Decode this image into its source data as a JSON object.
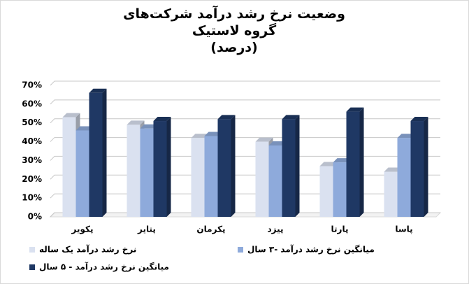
{
  "chart_data": {
    "type": "bar",
    "title": "وضعیت نرخ رشد درآمد شرکت‌های گروه لاستیک",
    "subtitle": "(درصد)",
    "categories": [
      "پکویر",
      "پتایر",
      "پکرمان",
      "پیزد",
      "پارتا",
      "پاسا"
    ],
    "series": [
      {
        "name": "نرخ رشد درآمد یک ساله",
        "color": "#dae1f0",
        "values": [
          53,
          49,
          42,
          40,
          27,
          24
        ]
      },
      {
        "name": "میانگین نرخ رشد درآمد -۳ سال",
        "color": "#8eaadb",
        "values": [
          46,
          47,
          43,
          38,
          29,
          42
        ]
      },
      {
        "name": "میانگین نرخ رشد درآمد - ۵ سال",
        "color": "#1f3864",
        "values": [
          66,
          51,
          52,
          52,
          56,
          51
        ]
      }
    ],
    "ylim": [
      0,
      70
    ],
    "yticks": [
      {
        "value": 0,
        "label": "0%"
      },
      {
        "value": 10,
        "label": "10%"
      },
      {
        "value": 20,
        "label": "20%"
      },
      {
        "value": 30,
        "label": "30%"
      },
      {
        "value": 40,
        "label": "40%"
      },
      {
        "value": 50,
        "label": "50%"
      },
      {
        "value": 60,
        "label": "60%"
      },
      {
        "value": 70,
        "label": "70%"
      }
    ],
    "grid": true
  }
}
